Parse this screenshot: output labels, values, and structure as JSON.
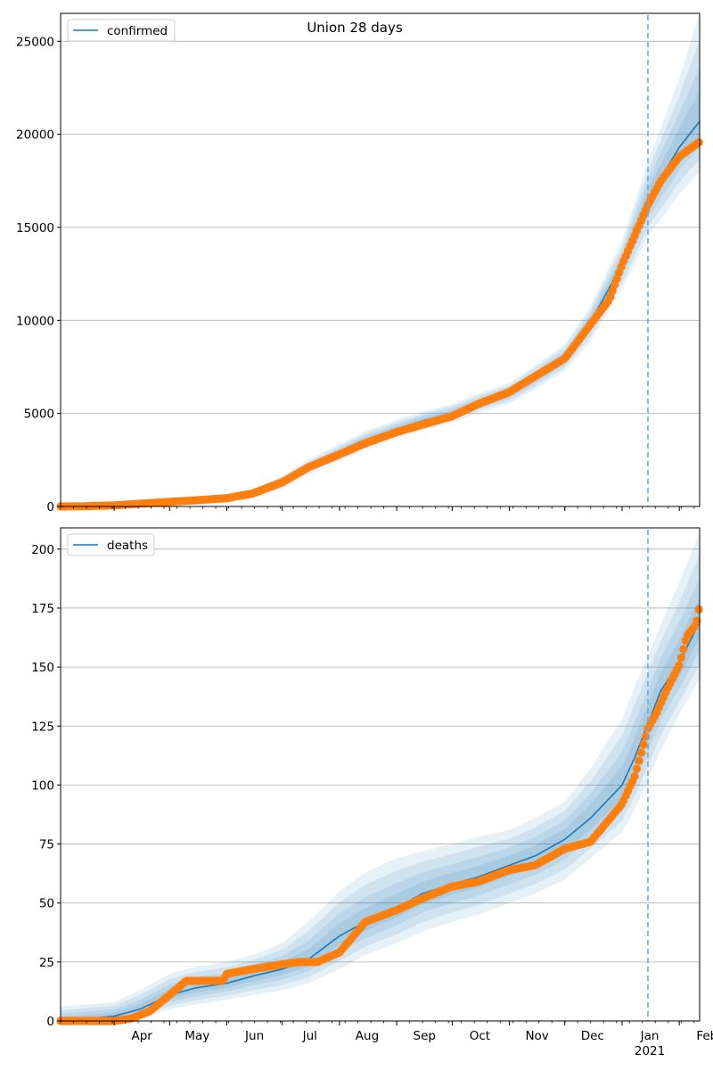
{
  "chart_data": [
    {
      "type": "line",
      "title": "Union 28 days",
      "legend": {
        "label": "confirmed",
        "placement": "top-left"
      },
      "x_axis": {
        "type": "date",
        "range": [
          "2020-03-03",
          "2021-02-12"
        ]
      },
      "ylim": [
        0,
        26500
      ],
      "yticks": [
        0,
        5000,
        10000,
        15000,
        20000,
        25000
      ],
      "grid": "y",
      "forecast_start": "2021-01-15",
      "model_dates": [
        "2020-03-03",
        "2020-04-01",
        "2020-05-01",
        "2020-06-01",
        "2020-06-15",
        "2020-07-01",
        "2020-07-15",
        "2020-08-01",
        "2020-08-15",
        "2020-09-01",
        "2020-09-15",
        "2020-10-01",
        "2020-10-15",
        "2020-11-01",
        "2020-11-15",
        "2020-12-01",
        "2020-12-15",
        "2021-01-01",
        "2021-01-15",
        "2021-02-01",
        "2021-02-12"
      ],
      "model_values": [
        0,
        60,
        200,
        400,
        650,
        1300,
        2100,
        2900,
        3550,
        4150,
        4600,
        5000,
        5550,
        6100,
        6950,
        8000,
        9900,
        13000,
        16500,
        19300,
        20700
      ],
      "band_upper": [
        60,
        180,
        400,
        650,
        950,
        1650,
        2500,
        3350,
        4050,
        4650,
        5100,
        5500,
        6050,
        6650,
        7600,
        8700,
        10800,
        14300,
        18500,
        23000,
        26500
      ],
      "band_lower": [
        0,
        0,
        60,
        200,
        400,
        950,
        1700,
        2450,
        3050,
        3650,
        4100,
        4500,
        5050,
        5550,
        6300,
        7300,
        8900,
        11700,
        14500,
        16800,
        18000
      ],
      "observed_dates": [
        "2020-03-03",
        "2020-03-15",
        "2020-04-01",
        "2020-04-15",
        "2020-05-01",
        "2020-05-15",
        "2020-06-01",
        "2020-06-15",
        "2020-07-01",
        "2020-07-15",
        "2020-08-01",
        "2020-08-15",
        "2020-09-01",
        "2020-09-15",
        "2020-10-01",
        "2020-10-15",
        "2020-11-01",
        "2020-11-15",
        "2020-12-01",
        "2020-12-15",
        "2020-12-25",
        "2021-01-01",
        "2021-01-08",
        "2021-01-15",
        "2021-01-22",
        "2021-02-01",
        "2021-02-12"
      ],
      "observed_values": [
        0,
        10,
        60,
        150,
        250,
        330,
        450,
        700,
        1300,
        2100,
        2800,
        3400,
        4000,
        4400,
        4850,
        5500,
        6150,
        7000,
        7950,
        9800,
        11100,
        13000,
        14600,
        16200,
        17500,
        18800,
        19600
      ]
    },
    {
      "type": "line",
      "legend": {
        "label": "deaths",
        "placement": "top-left"
      },
      "x_axis": {
        "type": "date",
        "range": [
          "2020-03-03",
          "2021-02-12"
        ],
        "ticks": [
          {
            "date": "2020-04-01",
            "label": "Apr"
          },
          {
            "date": "2020-05-01",
            "label": "May"
          },
          {
            "date": "2020-06-01",
            "label": "Jun"
          },
          {
            "date": "2020-07-01",
            "label": "Jul"
          },
          {
            "date": "2020-08-01",
            "label": "Aug"
          },
          {
            "date": "2020-09-01",
            "label": "Sep"
          },
          {
            "date": "2020-10-01",
            "label": "Oct"
          },
          {
            "date": "2020-11-01",
            "label": "Nov"
          },
          {
            "date": "2020-12-01",
            "label": "Dec"
          },
          {
            "date": "2021-01-01",
            "label": "Jan"
          },
          {
            "date": "2021-02-01",
            "label": "Feb"
          }
        ],
        "year_label": {
          "date": "2021-01-01",
          "label": "2021"
        }
      },
      "ylim": [
        0,
        209
      ],
      "yticks": [
        0,
        25,
        50,
        75,
        100,
        125,
        150,
        175,
        200
      ],
      "grid": "y",
      "forecast_start": "2021-01-15",
      "model_dates": [
        "2020-03-03",
        "2020-04-01",
        "2020-04-15",
        "2020-05-01",
        "2020-05-15",
        "2020-06-01",
        "2020-06-15",
        "2020-07-01",
        "2020-07-15",
        "2020-08-01",
        "2020-08-15",
        "2020-09-01",
        "2020-09-15",
        "2020-10-01",
        "2020-10-15",
        "2020-11-01",
        "2020-11-15",
        "2020-12-01",
        "2020-12-15",
        "2021-01-01",
        "2021-01-08",
        "2021-01-15",
        "2021-01-22",
        "2021-02-01",
        "2021-02-12"
      ],
      "model_values": [
        0,
        2,
        5,
        11,
        14,
        16,
        19,
        22,
        26,
        36,
        42,
        48,
        54,
        58,
        61,
        66,
        70,
        77,
        86,
        100,
        112,
        126,
        140,
        152,
        169
      ],
      "band_upper": [
        6,
        8,
        13,
        20,
        23,
        25,
        28,
        33,
        42,
        55,
        63,
        69,
        72,
        75,
        78,
        81,
        86,
        93,
        107,
        128,
        142,
        155,
        168,
        186,
        207
      ],
      "band_lower": [
        0,
        0,
        1,
        5,
        7,
        9,
        11,
        13,
        16,
        22,
        28,
        33,
        38,
        42,
        45,
        50,
        54,
        60,
        69,
        80,
        90,
        102,
        115,
        130,
        145
      ],
      "observed_dates": [
        "2020-03-03",
        "2020-03-15",
        "2020-04-01",
        "2020-04-10",
        "2020-04-20",
        "2020-05-01",
        "2020-05-10",
        "2020-05-20",
        "2020-05-30",
        "2020-06-01",
        "2020-06-15",
        "2020-07-01",
        "2020-07-10",
        "2020-07-20",
        "2020-08-01",
        "2020-08-15",
        "2020-09-01",
        "2020-09-15",
        "2020-10-01",
        "2020-10-15",
        "2020-11-01",
        "2020-11-15",
        "2020-12-01",
        "2020-12-15",
        "2021-01-01",
        "2021-01-08",
        "2021-01-15",
        "2021-01-20",
        "2021-01-25",
        "2021-02-01",
        "2021-02-05",
        "2021-02-10",
        "2021-02-12"
      ],
      "observed_values": [
        0,
        0,
        0,
        1,
        4,
        11,
        17,
        17,
        17,
        20,
        22,
        24,
        25,
        25,
        29,
        42,
        47,
        52,
        57,
        59,
        64,
        66,
        73,
        76,
        92,
        104,
        124,
        131,
        140,
        151,
        163,
        168,
        176
      ]
    }
  ]
}
